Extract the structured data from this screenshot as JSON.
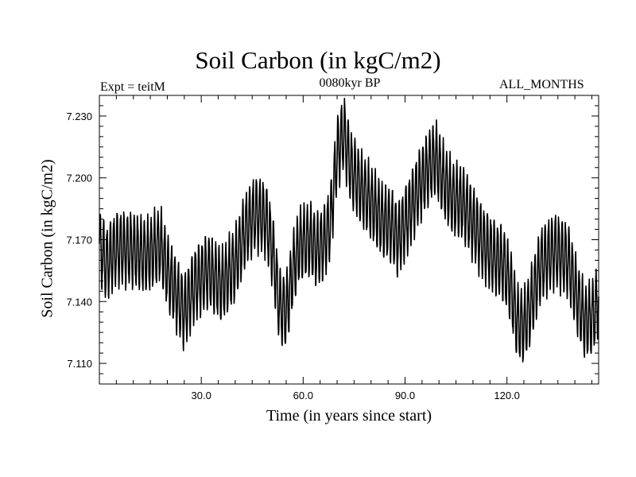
{
  "chart_data": {
    "type": "line",
    "title": "Soil Carbon (in kgC/m2)",
    "subtitle": "0080kyr BP",
    "annotation_left": "Expt = teitM",
    "annotation_right": "ALL_MONTHS",
    "xlabel": "Time (in years since start)",
    "ylabel": "Soil Carbon (in kgC/m2)",
    "xlim": [
      0,
      147
    ],
    "ylim": [
      7.1,
      7.24
    ],
    "xticks": [
      30,
      60,
      90,
      120
    ],
    "xtick_labels": [
      "30.0",
      "60.0",
      "90.0",
      "120.0"
    ],
    "yticks": [
      7.11,
      7.14,
      7.17,
      7.2,
      7.23
    ],
    "ytick_labels": [
      "7.110",
      "7.140",
      "7.170",
      "7.200",
      "7.230"
    ],
    "seasonal_amplitude": 0.017,
    "series": [
      {
        "name": "",
        "trend_x": [
          0,
          2,
          5,
          10,
          14,
          18,
          20,
          23,
          25,
          28,
          32,
          36,
          40,
          43,
          46,
          49,
          51,
          53,
          55,
          57,
          59,
          62,
          64,
          66,
          68,
          70,
          72,
          74,
          77,
          80,
          83,
          86,
          88,
          91,
          94,
          97,
          99,
          101,
          104,
          107,
          110,
          113,
          116,
          119,
          121,
          123,
          125,
          127,
          130,
          134,
          138,
          141,
          143,
          145,
          147
        ],
        "trend_y": [
          7.168,
          7.158,
          7.166,
          7.165,
          7.162,
          7.168,
          7.155,
          7.142,
          7.135,
          7.148,
          7.155,
          7.148,
          7.158,
          7.175,
          7.183,
          7.18,
          7.165,
          7.138,
          7.135,
          7.155,
          7.168,
          7.17,
          7.165,
          7.168,
          7.178,
          7.212,
          7.222,
          7.205,
          7.195,
          7.188,
          7.18,
          7.177,
          7.17,
          7.182,
          7.195,
          7.205,
          7.21,
          7.2,
          7.19,
          7.188,
          7.178,
          7.168,
          7.162,
          7.158,
          7.148,
          7.13,
          7.128,
          7.138,
          7.158,
          7.165,
          7.16,
          7.14,
          7.13,
          7.132,
          7.14
        ]
      }
    ]
  }
}
